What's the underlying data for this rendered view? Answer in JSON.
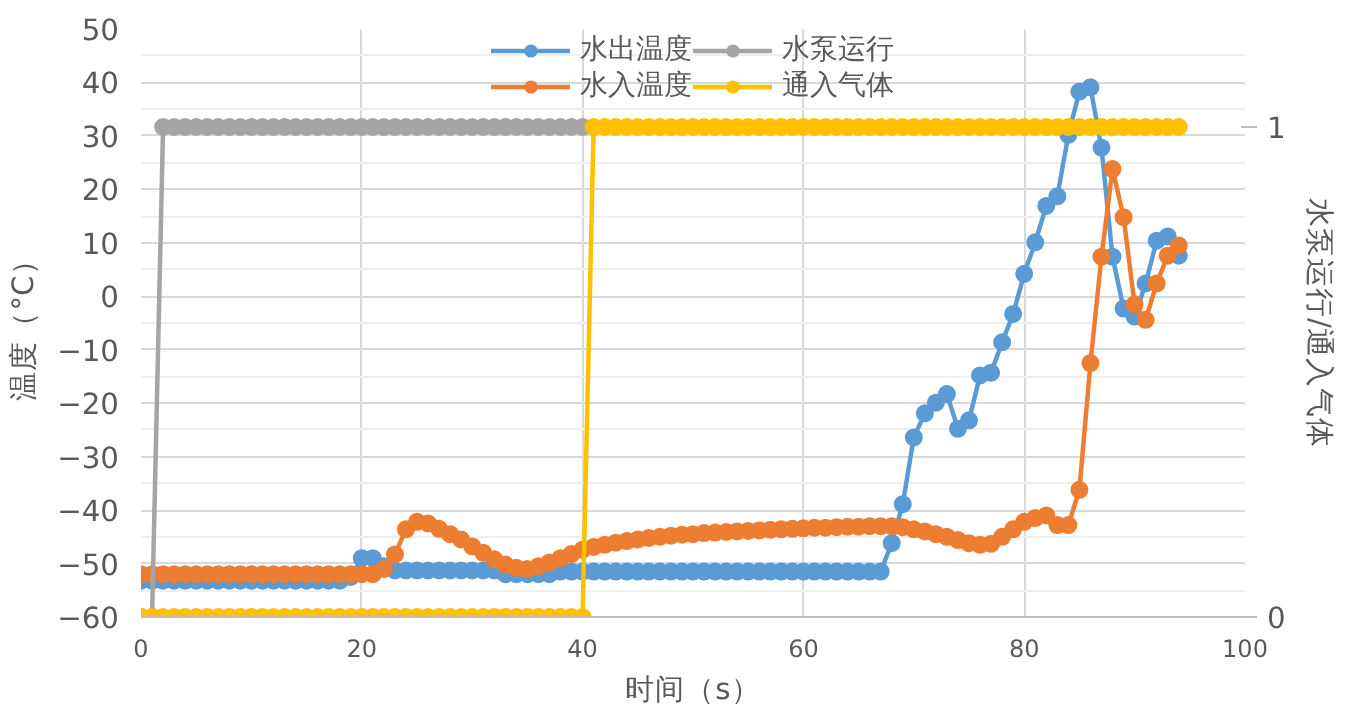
{
  "chart_data": {
    "type": "line",
    "xlabel": "时间（s）",
    "ylabel": "温度（°C）",
    "y2label": "水泵运行/通入气体",
    "x": [
      0,
      1,
      2,
      3,
      4,
      5,
      6,
      7,
      8,
      9,
      10,
      11,
      12,
      13,
      14,
      15,
      16,
      17,
      18,
      19,
      20,
      21,
      22,
      23,
      24,
      25,
      26,
      27,
      28,
      29,
      30,
      31,
      32,
      33,
      34,
      35,
      36,
      37,
      38,
      39,
      40,
      41,
      42,
      43,
      44,
      45,
      46,
      47,
      48,
      49,
      50,
      51,
      52,
      53,
      54,
      55,
      56,
      57,
      58,
      59,
      60,
      61,
      62,
      63,
      64,
      65,
      66,
      67,
      68,
      69,
      70,
      71,
      72,
      73,
      74,
      75,
      76,
      77,
      78,
      79,
      80,
      81,
      82,
      83,
      84,
      85,
      86,
      87,
      88,
      89,
      90,
      91,
      92,
      93,
      94
    ],
    "xlim": [
      0,
      100
    ],
    "xticks": [
      0,
      20,
      40,
      60,
      80,
      100
    ],
    "ylim": [
      -60,
      50
    ],
    "yticks": [
      -60,
      -50,
      -40,
      -30,
      -20,
      -10,
      0,
      10,
      20,
      30,
      40,
      50
    ],
    "y2lim": [
      0,
      1.2
    ],
    "y2ticks": [
      0,
      1
    ],
    "grid": true,
    "legend": "top",
    "marker": "circle",
    "line_style": "solid",
    "series": [
      {
        "name": "水出温度",
        "color": "#5b9bd5",
        "values": [
          -53.2,
          -53.2,
          -53.2,
          -53.2,
          -53.2,
          -53.2,
          -53.2,
          -53.2,
          -53.2,
          -53.2,
          -53.2,
          -53.2,
          -53.2,
          -53.2,
          -53.2,
          -53.2,
          -53.2,
          -53.2,
          -53.2,
          -52.5,
          -49,
          -49,
          -50.5,
          -51.3,
          -51.3,
          -51.3,
          -51.3,
          -51.3,
          -51.3,
          -51.3,
          -51.3,
          -51.3,
          -51.3,
          -52,
          -52,
          -52,
          -52,
          -52,
          -51.5,
          -51.5,
          -51.5,
          -51.5,
          -51.5,
          -51.5,
          -51.5,
          -51.5,
          -51.5,
          -51.5,
          -51.5,
          -51.5,
          -51.5,
          -51.5,
          -51.5,
          -51.5,
          -51.5,
          -51.5,
          -51.5,
          -51.5,
          -51.5,
          -51.5,
          -51.5,
          -51.5,
          -51.5,
          -51.5,
          -51.5,
          -51.5,
          -51.5,
          -51.5,
          -46.2,
          -38.9,
          -26.4,
          -21.9,
          -19.9,
          -18.3,
          -24.8,
          -23.2,
          -14.8,
          -14.3,
          -8.6,
          -3.3,
          4.2,
          10.1,
          16.9,
          18.7,
          30.2,
          38.3,
          39.1,
          27.8,
          7.4,
          -2.3,
          -3.8,
          2.4,
          10.4,
          11.2,
          7.6
        ]
      },
      {
        "name": "水入温度",
        "color": "#ed7d31",
        "values": [
          -52,
          -52,
          -52,
          -52,
          -52,
          -52,
          -52,
          -52,
          -52,
          -52,
          -52,
          -52,
          -52,
          -52,
          -52,
          -52,
          -52,
          -52,
          -52,
          -52,
          -52,
          -52,
          -51,
          -48.3,
          -43.6,
          -42.2,
          -42.5,
          -43.5,
          -44.5,
          -45.5,
          -46.8,
          -48,
          -49.2,
          -50.2,
          -50.8,
          -51,
          -50.5,
          -49.8,
          -49,
          -48.2,
          -47.4,
          -46.9,
          -46.5,
          -46.1,
          -45.8,
          -45.5,
          -45.2,
          -45,
          -44.8,
          -44.6,
          -44.5,
          -44.3,
          -44.2,
          -44.1,
          -44,
          -43.9,
          -43.8,
          -43.7,
          -43.6,
          -43.5,
          -43.4,
          -43.3,
          -43.3,
          -43.2,
          -43.1,
          -43.1,
          -43,
          -43,
          -43,
          -43.2,
          -43.6,
          -44,
          -44.5,
          -45,
          -45.6,
          -46.2,
          -46.5,
          -46.3,
          -45,
          -43.6,
          -42.2,
          -41.5,
          -41,
          -42.8,
          -42.8,
          -36.2,
          -12.5,
          7.4,
          23.8,
          14.8,
          -1.5,
          -4.4,
          2.4,
          7.6,
          9.5
        ]
      },
      {
        "name": "水泵运行",
        "color": "#a5a5a5",
        "axis": "y2",
        "x": [
          0,
          1,
          2,
          3,
          4,
          5,
          6,
          7,
          8,
          9,
          10,
          11,
          12,
          13,
          14,
          15,
          16,
          17,
          18,
          19,
          20,
          21,
          22,
          23,
          24,
          25,
          26,
          27,
          28,
          29,
          30,
          31,
          32,
          33,
          34,
          35,
          36,
          37,
          38,
          39,
          40
        ],
        "values": [
          0,
          0,
          1,
          1,
          1,
          1,
          1,
          1,
          1,
          1,
          1,
          1,
          1,
          1,
          1,
          1,
          1,
          1,
          1,
          1,
          1,
          1,
          1,
          1,
          1,
          1,
          1,
          1,
          1,
          1,
          1,
          1,
          1,
          1,
          1,
          1,
          1,
          1,
          1,
          1,
          1
        ]
      },
      {
        "name": "通入气体",
        "color": "#ffc000",
        "axis": "y2",
        "values": [
          0,
          0,
          0,
          0,
          0,
          0,
          0,
          0,
          0,
          0,
          0,
          0,
          0,
          0,
          0,
          0,
          0,
          0,
          0,
          0,
          0,
          0,
          0,
          0,
          0,
          0,
          0,
          0,
          0,
          0,
          0,
          0,
          0,
          0,
          0,
          0,
          0,
          0,
          0,
          0,
          0,
          1,
          1,
          1,
          1,
          1,
          1,
          1,
          1,
          1,
          1,
          1,
          1,
          1,
          1,
          1,
          1,
          1,
          1,
          1,
          1,
          1,
          1,
          1,
          1,
          1,
          1,
          1,
          1,
          1,
          1,
          1,
          1,
          1,
          1,
          1,
          1,
          1,
          1,
          1,
          1,
          1,
          1,
          1,
          1,
          1,
          1,
          1,
          1,
          1,
          1,
          1,
          1,
          1,
          1
        ]
      }
    ]
  }
}
